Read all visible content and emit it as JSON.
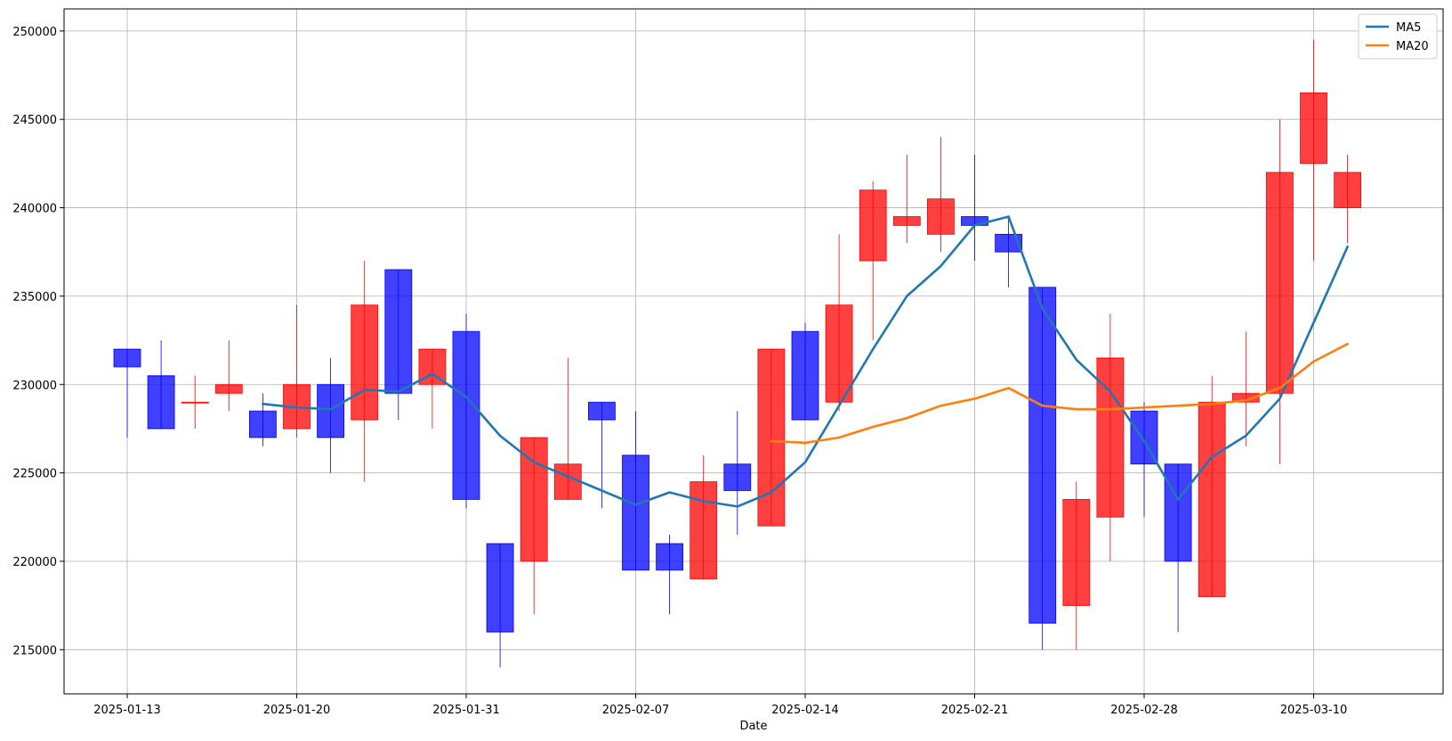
{
  "chart_data": {
    "type": "candlestick",
    "xlabel": "Date",
    "ylabel": "",
    "ylim": [
      212500,
      251250
    ],
    "yticks": [
      215000,
      220000,
      225000,
      230000,
      235000,
      240000,
      245000,
      250000
    ],
    "xticks": [
      {
        "index": 0,
        "label": "2025-01-13"
      },
      {
        "index": 5,
        "label": "2025-01-20"
      },
      {
        "index": 10,
        "label": "2025-01-31"
      },
      {
        "index": 15,
        "label": "2025-02-07"
      },
      {
        "index": 20,
        "label": "2025-02-14"
      },
      {
        "index": 25,
        "label": "2025-02-21"
      },
      {
        "index": 30,
        "label": "2025-02-28"
      },
      {
        "index": 35,
        "label": "2025-03-10"
      }
    ],
    "grid": true,
    "legend_position": "top-right",
    "up_color": "#ff0000",
    "down_color": "#0000ff",
    "candles": [
      {
        "open": 232000,
        "close": 231000,
        "high": 232000,
        "low": 227000
      },
      {
        "open": 230500,
        "close": 227500,
        "high": 232500,
        "low": 227500
      },
      {
        "open": 229000,
        "close": 229000,
        "high": 230500,
        "low": 227500
      },
      {
        "open": 229500,
        "close": 230000,
        "high": 232500,
        "low": 228500
      },
      {
        "open": 228500,
        "close": 227000,
        "high": 229500,
        "low": 226500
      },
      {
        "open": 227500,
        "close": 230000,
        "high": 234500,
        "low": 227000
      },
      {
        "open": 230000,
        "close": 227000,
        "high": 231500,
        "low": 225000
      },
      {
        "open": 228000,
        "close": 234500,
        "high": 237000,
        "low": 224500
      },
      {
        "open": 236500,
        "close": 229500,
        "high": 236500,
        "low": 228000
      },
      {
        "open": 230000,
        "close": 232000,
        "high": 232000,
        "low": 227500
      },
      {
        "open": 233000,
        "close": 223500,
        "high": 234000,
        "low": 223000
      },
      {
        "open": 221000,
        "close": 216000,
        "high": 221000,
        "low": 214000
      },
      {
        "open": 220000,
        "close": 227000,
        "high": 227000,
        "low": 217000
      },
      {
        "open": 223500,
        "close": 225500,
        "high": 231500,
        "low": 223500
      },
      {
        "open": 229000,
        "close": 228000,
        "high": 229000,
        "low": 223000
      },
      {
        "open": 226000,
        "close": 219500,
        "high": 228500,
        "low": 219500
      },
      {
        "open": 221000,
        "close": 219500,
        "high": 221500,
        "low": 217000
      },
      {
        "open": 219000,
        "close": 224500,
        "high": 226000,
        "low": 219000
      },
      {
        "open": 225500,
        "close": 224000,
        "high": 228500,
        "low": 221500
      },
      {
        "open": 222000,
        "close": 232000,
        "high": 232000,
        "low": 222000
      },
      {
        "open": 233000,
        "close": 228000,
        "high": 233500,
        "low": 228000
      },
      {
        "open": 229000,
        "close": 234500,
        "high": 238500,
        "low": 228500
      },
      {
        "open": 237000,
        "close": 241000,
        "high": 241500,
        "low": 232500
      },
      {
        "open": 239000,
        "close": 239500,
        "high": 243000,
        "low": 238000
      },
      {
        "open": 238500,
        "close": 240500,
        "high": 244000,
        "low": 237500
      },
      {
        "open": 239500,
        "close": 239000,
        "high": 243000,
        "low": 237000
      },
      {
        "open": 238500,
        "close": 237500,
        "high": 239500,
        "low": 235500
      },
      {
        "open": 235500,
        "close": 216500,
        "high": 235500,
        "low": 215000
      },
      {
        "open": 217500,
        "close": 223500,
        "high": 224500,
        "low": 215000
      },
      {
        "open": 222500,
        "close": 231500,
        "high": 234000,
        "low": 220000
      },
      {
        "open": 228500,
        "close": 225500,
        "high": 229000,
        "low": 222500
      },
      {
        "open": 225500,
        "close": 220000,
        "high": 225500,
        "low": 216000
      },
      {
        "open": 218000,
        "close": 229000,
        "high": 230500,
        "low": 218000
      },
      {
        "open": 229000,
        "close": 229500,
        "high": 233000,
        "low": 226500
      },
      {
        "open": 229500,
        "close": 242000,
        "high": 245000,
        "low": 225500
      },
      {
        "open": 242500,
        "close": 246500,
        "high": 249500,
        "low": 237000
      },
      {
        "open": 240000,
        "close": 242000,
        "high": 243000,
        "low": 238000
      }
    ],
    "series": [
      {
        "name": "MA5",
        "color": "#1f77b4",
        "start_index": 4,
        "values": [
          228900,
          228700,
          228600,
          229700,
          229600,
          230600,
          229300,
          227100,
          225600,
          224800,
          224000,
          223200,
          223900,
          223400,
          223100,
          223900,
          225600,
          228800,
          232000,
          235000,
          236700,
          239000,
          239500,
          234300,
          231400,
          229600,
          226800,
          223500,
          225900,
          227100,
          229200,
          233500,
          237800
        ]
      },
      {
        "name": "MA20",
        "color": "#ff7f0e",
        "start_index": 19,
        "values": [
          226800,
          226700,
          227000,
          227600,
          228100,
          228800,
          229200,
          229800,
          228800,
          228600,
          228600,
          228700,
          228800,
          228900,
          229100,
          229800,
          231300,
          232300
        ]
      }
    ]
  }
}
